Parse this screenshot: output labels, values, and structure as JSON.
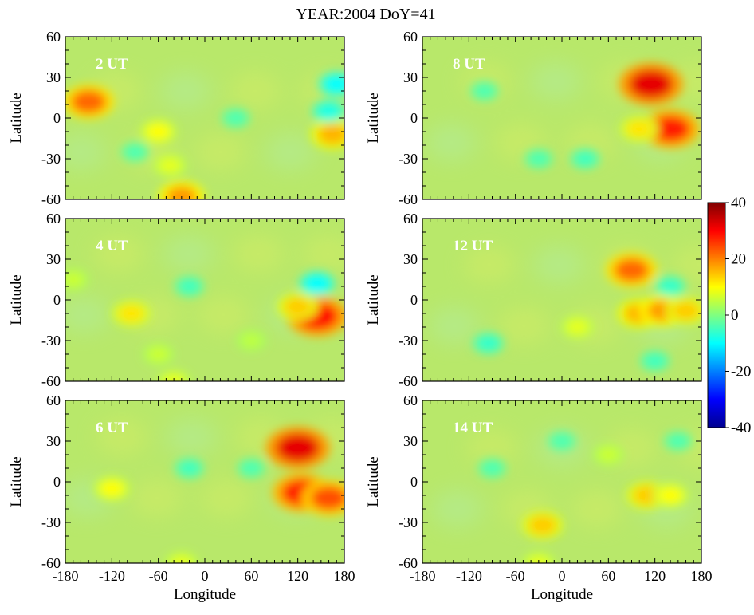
{
  "figure": {
    "title": "YEAR:2004  DoY=41"
  },
  "colors": {
    "field_base": "#b8e86a",
    "axes": "#000000",
    "panel_label": "#ffffff",
    "colormap": [
      "#00008f",
      "#0000ff",
      "#0080ff",
      "#00ffff",
      "#80ff80",
      "#ffff00",
      "#ff8000",
      "#ff0000",
      "#800000"
    ]
  },
  "chart_data": {
    "type": "heatmap",
    "title": "YEAR:2004  DoY=41",
    "xlabel": "Longitude",
    "ylabel": "Latitude",
    "xlim": [
      -180,
      180
    ],
    "ylim": [
      -60,
      60
    ],
    "xticks": [
      -180,
      -120,
      -60,
      0,
      60,
      120,
      180
    ],
    "yticks": [
      -60,
      -30,
      0,
      30,
      60
    ],
    "colorbar": {
      "range": [
        -40,
        40
      ],
      "ticks": [
        40,
        20,
        0,
        -20,
        -40
      ]
    },
    "panels": [
      {
        "label": "2 UT",
        "features": [
          {
            "lon": -150,
            "lat": 12,
            "value": 22
          },
          {
            "lon": -60,
            "lat": -10,
            "value": 10
          },
          {
            "lon": 165,
            "lat": -12,
            "value": 16
          },
          {
            "lon": -30,
            "lat": -58,
            "value": 18
          },
          {
            "lon": -45,
            "lat": -35,
            "value": 8
          },
          {
            "lon": 170,
            "lat": 25,
            "value": -10
          },
          {
            "lon": 160,
            "lat": 5,
            "value": -8
          },
          {
            "lon": -90,
            "lat": -25,
            "value": -4
          },
          {
            "lon": 40,
            "lat": 0,
            "value": -4
          }
        ]
      },
      {
        "label": "8 UT",
        "features": [
          {
            "lon": 115,
            "lat": 25,
            "value": 32
          },
          {
            "lon": 140,
            "lat": -8,
            "value": 28
          },
          {
            "lon": 100,
            "lat": -8,
            "value": 12
          },
          {
            "lon": 30,
            "lat": -30,
            "value": -5
          },
          {
            "lon": -100,
            "lat": 20,
            "value": -4
          },
          {
            "lon": -30,
            "lat": -30,
            "value": -4
          }
        ]
      },
      {
        "label": "4 UT",
        "features": [
          {
            "lon": 145,
            "lat": -12,
            "value": 30
          },
          {
            "lon": 120,
            "lat": -5,
            "value": 14
          },
          {
            "lon": -95,
            "lat": -10,
            "value": 12
          },
          {
            "lon": 145,
            "lat": 12,
            "value": -10
          },
          {
            "lon": -20,
            "lat": 10,
            "value": -5
          },
          {
            "lon": -170,
            "lat": 15,
            "value": 6
          },
          {
            "lon": -60,
            "lat": -40,
            "value": 6
          },
          {
            "lon": 60,
            "lat": -30,
            "value": 5
          },
          {
            "lon": -40,
            "lat": -60,
            "value": 8
          }
        ]
      },
      {
        "label": "12 UT",
        "features": [
          {
            "lon": 90,
            "lat": 22,
            "value": 22
          },
          {
            "lon": 100,
            "lat": -10,
            "value": 16
          },
          {
            "lon": 130,
            "lat": -8,
            "value": 18
          },
          {
            "lon": 160,
            "lat": -8,
            "value": 14
          },
          {
            "lon": -95,
            "lat": -32,
            "value": -6
          },
          {
            "lon": 140,
            "lat": 10,
            "value": -6
          },
          {
            "lon": 20,
            "lat": -20,
            "value": 8
          },
          {
            "lon": 120,
            "lat": -45,
            "value": -5
          }
        ]
      },
      {
        "label": "6 UT",
        "features": [
          {
            "lon": 120,
            "lat": 25,
            "value": 32
          },
          {
            "lon": 125,
            "lat": -8,
            "value": 28
          },
          {
            "lon": 160,
            "lat": -12,
            "value": 24
          },
          {
            "lon": -120,
            "lat": -5,
            "value": 10
          },
          {
            "lon": -20,
            "lat": 10,
            "value": -5
          },
          {
            "lon": 60,
            "lat": 10,
            "value": -4
          },
          {
            "lon": -30,
            "lat": -60,
            "value": 8
          }
        ]
      },
      {
        "label": "14 UT",
        "features": [
          {
            "lon": 110,
            "lat": -10,
            "value": 14
          },
          {
            "lon": 140,
            "lat": -10,
            "value": 10
          },
          {
            "lon": -25,
            "lat": -32,
            "value": 14
          },
          {
            "lon": -30,
            "lat": -60,
            "value": 8
          },
          {
            "lon": 60,
            "lat": 20,
            "value": 6
          },
          {
            "lon": 0,
            "lat": 30,
            "value": -4
          },
          {
            "lon": -90,
            "lat": 10,
            "value": -4
          },
          {
            "lon": 150,
            "lat": 30,
            "value": -4
          }
        ]
      }
    ]
  }
}
